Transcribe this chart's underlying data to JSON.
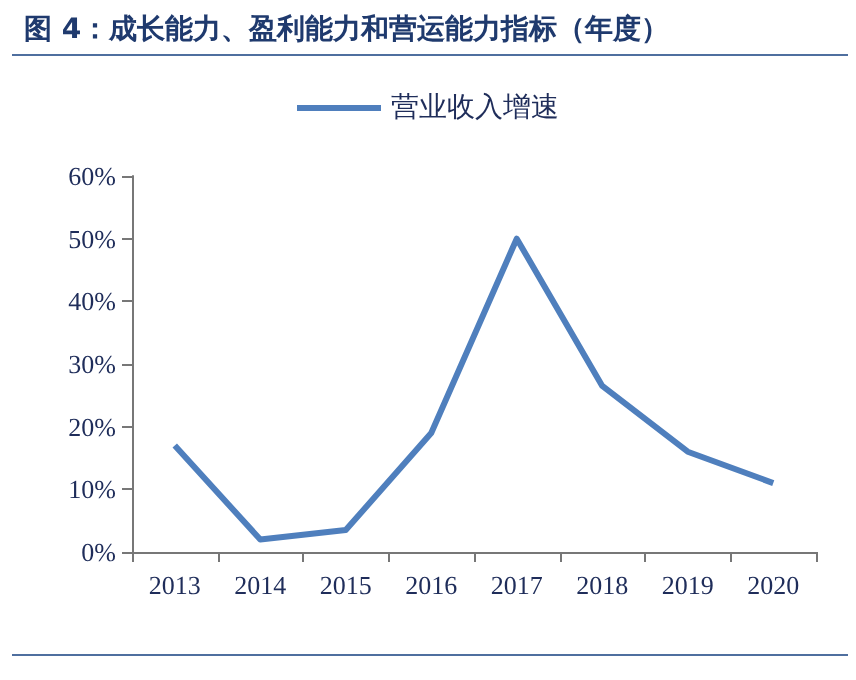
{
  "chart_data": {
    "type": "line",
    "title": "图 4：成长能力、盈利能力和营运能力指标（年度）",
    "categories": [
      "2013",
      "2014",
      "2015",
      "2016",
      "2017",
      "2018",
      "2019",
      "2020"
    ],
    "series": [
      {
        "name": "营业收入增速",
        "color": "#4f7fbd",
        "values": [
          17,
          2,
          3.5,
          19,
          50,
          26.5,
          16,
          11
        ]
      }
    ],
    "ylim": [
      0,
      60
    ],
    "yticks": [
      {
        "value": 0,
        "label": "0%"
      },
      {
        "value": 10,
        "label": "10%"
      },
      {
        "value": 20,
        "label": "20%"
      },
      {
        "value": 30,
        "label": "30%"
      },
      {
        "value": 40,
        "label": "40%"
      },
      {
        "value": 50,
        "label": "50%"
      },
      {
        "value": 60,
        "label": "60%"
      }
    ],
    "grid": false,
    "legend": "top",
    "marker": "none",
    "line_style": "solid"
  }
}
